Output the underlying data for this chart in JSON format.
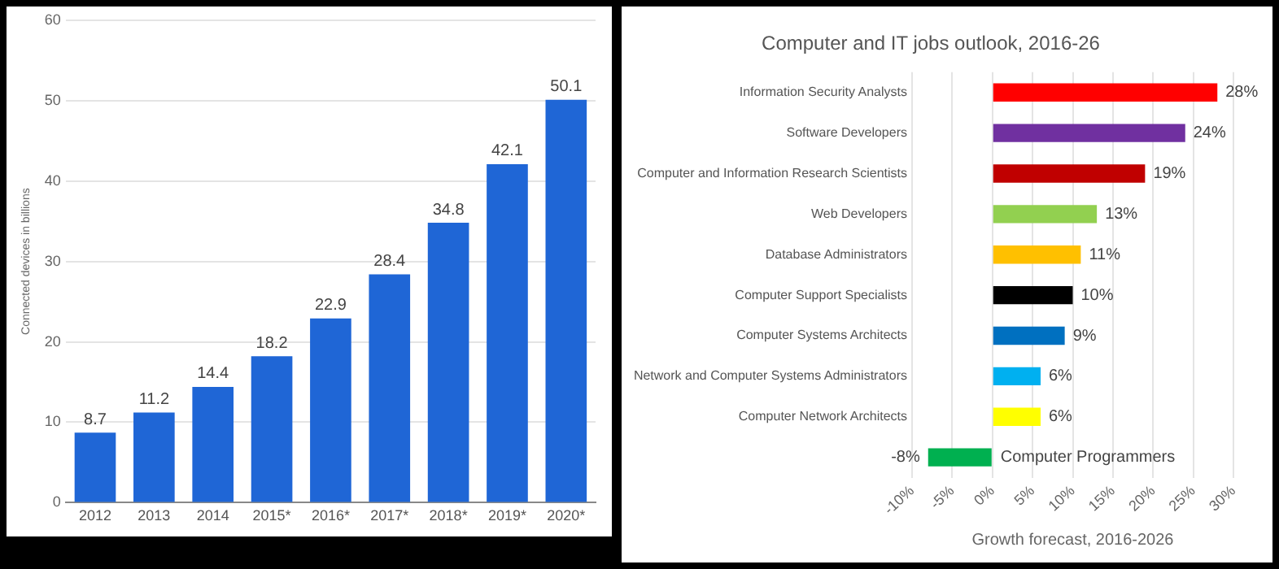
{
  "chart_data": [
    {
      "type": "bar",
      "ylabel": "Connected devices in billions",
      "categories": [
        "2012",
        "2013",
        "2014",
        "2015*",
        "2016*",
        "2017*",
        "2018*",
        "2019*",
        "2020*"
      ],
      "values": [
        8.7,
        11.2,
        14.4,
        18.2,
        22.9,
        28.4,
        34.8,
        42.1,
        50.1
      ],
      "color": "#1f66d6",
      "ylim": [
        0,
        60
      ],
      "yticks": [
        0,
        10,
        20,
        30,
        40,
        50,
        60
      ],
      "grid": "y",
      "data_labels": true
    },
    {
      "type": "bar",
      "orientation": "horizontal",
      "title": "Computer and IT jobs outlook, 2016-26",
      "xlabel": "Growth forecast, 2016-2026",
      "categories": [
        "Information Security Analysts",
        "Software Developers",
        "Computer and Information Research Scientists",
        "Web Developers",
        "Database Administrators",
        "Computer Support Specialists",
        "Computer Systems Architects",
        "Network and Computer Systems Administrators",
        "Computer Network Architects",
        "Computer Programmers"
      ],
      "values": [
        28,
        24,
        19,
        13,
        11,
        10,
        9,
        6,
        6,
        -8
      ],
      "colors": [
        "#ff0000",
        "#7030a0",
        "#c00000",
        "#92d050",
        "#ffc000",
        "#000000",
        "#0070c0",
        "#00b0f0",
        "#ffff00",
        "#00b050"
      ],
      "value_labels": [
        "28%",
        "24%",
        "19%",
        "13%",
        "11%",
        "10%",
        "9%",
        "6%",
        "6%",
        "-8%"
      ],
      "xlim": [
        -10,
        30
      ],
      "xticks": [
        {
          "value": -10,
          "label": "-10%"
        },
        {
          "value": -5,
          "label": "-5%"
        },
        {
          "value": 0,
          "label": "0%"
        },
        {
          "value": 5,
          "label": "5%"
        },
        {
          "value": 10,
          "label": "10%"
        },
        {
          "value": 15,
          "label": "15%"
        },
        {
          "value": 20,
          "label": "20%"
        },
        {
          "value": 25,
          "label": "25%"
        },
        {
          "value": 30,
          "label": "30%"
        }
      ],
      "grid": "x"
    }
  ]
}
